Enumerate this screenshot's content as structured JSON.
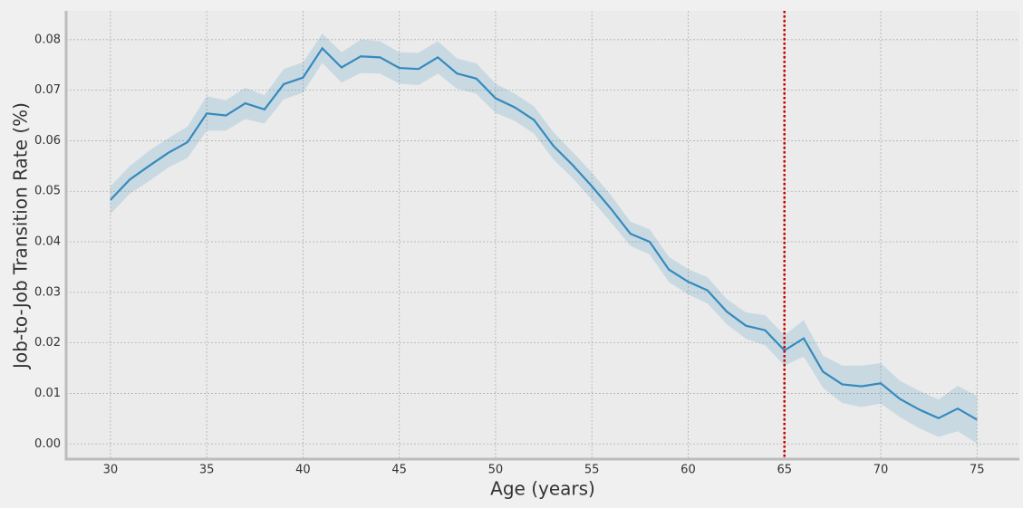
{
  "chart_data": {
    "type": "line",
    "xlabel": "Age (years)",
    "ylabel": "Job-to-Job Transition Rate (%)",
    "x": [
      30,
      31,
      32,
      33,
      34,
      35,
      36,
      37,
      38,
      39,
      40,
      41,
      42,
      43,
      44,
      45,
      46,
      47,
      48,
      49,
      50,
      51,
      52,
      53,
      54,
      55,
      56,
      57,
      58,
      59,
      60,
      61,
      62,
      63,
      64,
      65,
      66,
      67,
      68,
      69,
      70,
      71,
      72,
      73,
      74,
      75
    ],
    "series": [
      {
        "color": "#348abd",
        "values": [
          0.0483,
          0.0523,
          0.055,
          0.0576,
          0.0597,
          0.0654,
          0.065,
          0.0674,
          0.0662,
          0.0712,
          0.0725,
          0.0783,
          0.0745,
          0.0767,
          0.0765,
          0.0744,
          0.0742,
          0.0765,
          0.0733,
          0.0723,
          0.0684,
          0.0666,
          0.0641,
          0.059,
          0.0552,
          0.051,
          0.0465,
          0.0416,
          0.04,
          0.0345,
          0.0321,
          0.0304,
          0.0262,
          0.0234,
          0.0225,
          0.0185,
          0.0209,
          0.0143,
          0.0118,
          0.0114,
          0.012,
          0.0089,
          0.0068,
          0.0051,
          0.007,
          0.0048
        ],
        "upper": [
          0.051,
          0.055,
          0.058,
          0.0605,
          0.0628,
          0.0688,
          0.068,
          0.0705,
          0.069,
          0.0742,
          0.0755,
          0.0812,
          0.0775,
          0.08,
          0.0797,
          0.0775,
          0.0774,
          0.0797,
          0.0763,
          0.0753,
          0.0713,
          0.0693,
          0.0668,
          0.0617,
          0.0578,
          0.0537,
          0.0492,
          0.044,
          0.0425,
          0.037,
          0.0346,
          0.033,
          0.0287,
          0.026,
          0.0255,
          0.0215,
          0.0245,
          0.0175,
          0.0155,
          0.0155,
          0.016,
          0.0125,
          0.0105,
          0.0088,
          0.0115,
          0.0095
        ],
        "lower": [
          0.0455,
          0.0495,
          0.052,
          0.0547,
          0.0566,
          0.062,
          0.062,
          0.0643,
          0.0634,
          0.0682,
          0.0695,
          0.0754,
          0.0715,
          0.0734,
          0.0733,
          0.0713,
          0.071,
          0.0733,
          0.0703,
          0.0693,
          0.0655,
          0.0639,
          0.0614,
          0.0563,
          0.0526,
          0.0483,
          0.0438,
          0.0392,
          0.0375,
          0.032,
          0.0296,
          0.0278,
          0.0237,
          0.0208,
          0.0195,
          0.0155,
          0.0173,
          0.0111,
          0.0081,
          0.0073,
          0.008,
          0.0053,
          0.0031,
          0.0014,
          0.0025,
          0.0001
        ]
      }
    ],
    "vline": {
      "value": 65,
      "color": "#cc0000"
    },
    "xlim": [
      27.7,
      77.2
    ],
    "ylim": [
      -0.003,
      0.0857
    ],
    "xticks": [
      30,
      35,
      40,
      45,
      50,
      55,
      60,
      65,
      70,
      75
    ],
    "yticks": [
      {
        "value": 0,
        "label": "0.00"
      },
      {
        "value": 0.01,
        "label": "0.01"
      },
      {
        "value": 0.02,
        "label": "0.02"
      },
      {
        "value": 0.03,
        "label": "0.03"
      },
      {
        "value": 0.04,
        "label": "0.04"
      },
      {
        "value": 0.05,
        "label": "0.05"
      },
      {
        "value": 0.06,
        "label": "0.06"
      },
      {
        "value": 0.07,
        "label": "0.07"
      },
      {
        "value": 0.08,
        "label": "0.08"
      }
    ],
    "grid": true
  }
}
